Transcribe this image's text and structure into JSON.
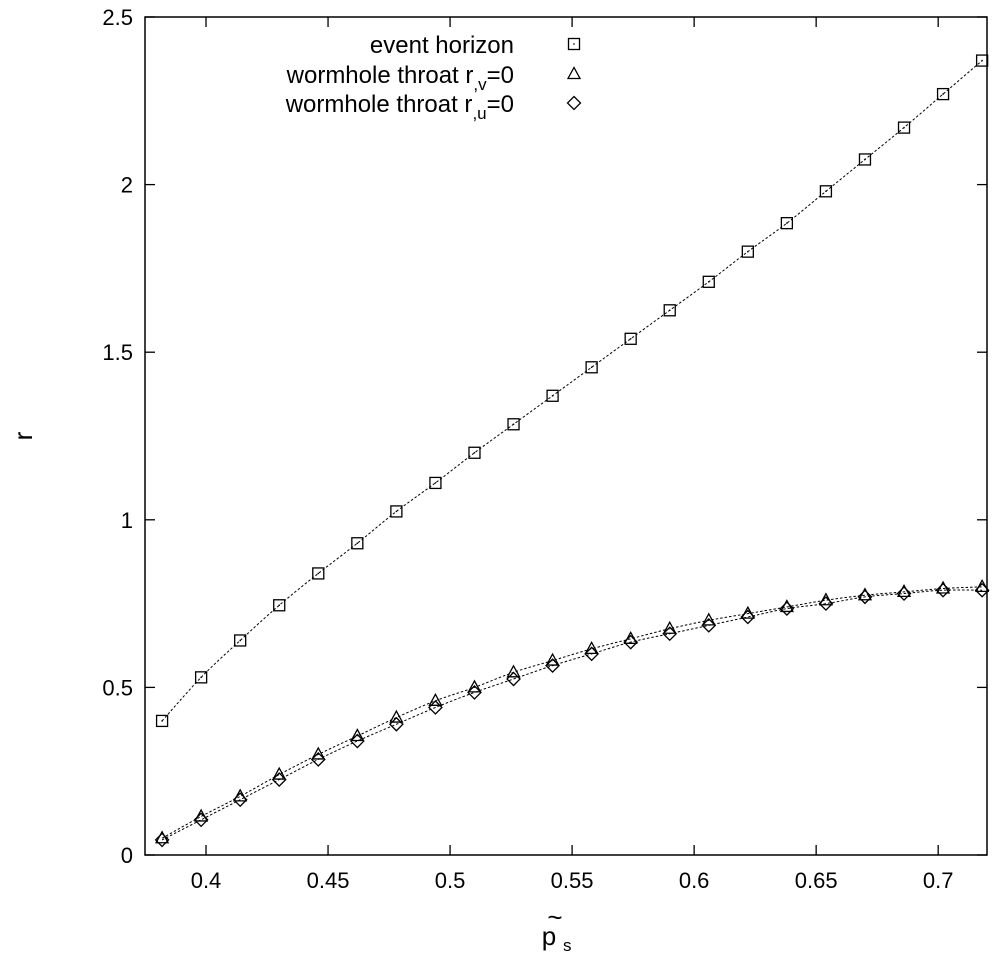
{
  "chart_data": {
    "type": "line",
    "xlabel": "p",
    "xlabel_accent": "~",
    "xlabel_sub": "s",
    "ylabel": "r",
    "xlim": [
      0.375,
      0.72
    ],
    "ylim": [
      0,
      2.5
    ],
    "grid": false,
    "legend_position": "top-right",
    "xticks": [
      0.4,
      0.45,
      0.5,
      0.55,
      0.6,
      0.65,
      0.7
    ],
    "xtick_labels": [
      "0.4",
      "0.45",
      "0.5",
      "0.55",
      "0.6",
      "0.65",
      "0.7"
    ],
    "yticks": [
      0,
      0.5,
      1,
      1.5,
      2,
      2.5
    ],
    "ytick_labels": [
      "0",
      "0.5",
      "1",
      "1.5",
      "2",
      "2.5"
    ],
    "x": [
      0.382,
      0.398,
      0.414,
      0.43,
      0.446,
      0.462,
      0.478,
      0.494,
      0.51,
      0.526,
      0.542,
      0.558,
      0.574,
      0.59,
      0.606,
      0.622,
      0.638,
      0.654,
      0.67,
      0.686,
      0.702,
      0.718
    ],
    "series": [
      {
        "name": "event horizon",
        "marker": "square",
        "values": [
          0.4,
          0.53,
          0.64,
          0.745,
          0.84,
          0.93,
          1.025,
          1.11,
          1.2,
          1.285,
          1.37,
          1.455,
          1.54,
          1.625,
          1.71,
          1.8,
          1.885,
          1.98,
          2.075,
          2.17,
          2.27,
          2.37
        ]
      },
      {
        "name": "wormhole throat r",
        "name_sub": ",v",
        "name_suffix": "=0",
        "marker": "triangle",
        "values": [
          0.05,
          0.115,
          0.175,
          0.24,
          0.3,
          0.355,
          0.41,
          0.46,
          0.5,
          0.545,
          0.58,
          0.615,
          0.645,
          0.675,
          0.7,
          0.72,
          0.74,
          0.76,
          0.775,
          0.785,
          0.795,
          0.8
        ]
      },
      {
        "name": "wormhole throat r",
        "name_sub": ",u",
        "name_suffix": "=0",
        "marker": "diamond",
        "values": [
          0.045,
          0.105,
          0.165,
          0.225,
          0.285,
          0.34,
          0.39,
          0.44,
          0.485,
          0.525,
          0.565,
          0.6,
          0.635,
          0.66,
          0.685,
          0.71,
          0.735,
          0.75,
          0.77,
          0.78,
          0.79,
          0.79
        ]
      }
    ]
  }
}
